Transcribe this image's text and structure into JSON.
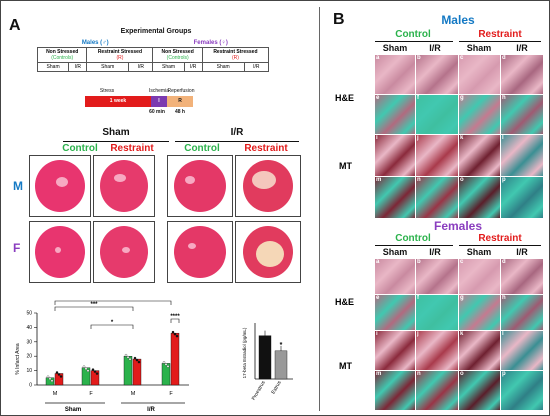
{
  "panelA": {
    "label": "A",
    "title": "Experimental Groups",
    "males": "Males (♂)",
    "females": "Females (♀)",
    "groups": [
      "Non Stressed",
      "Restraint Stressed",
      "Non Stressed",
      "Restraint Stressed"
    ],
    "group_sub": [
      "(Controls)",
      "(R)",
      "(Controls)",
      "(R)"
    ],
    "cells": [
      "Sham",
      "I/R",
      "Sham",
      "I/R",
      "Sham",
      "I/R",
      "Sham",
      "I/R"
    ],
    "timeline": {
      "stress": "Stress",
      "ischemia": "Ischemia",
      "reperfusion": "Reperfusion",
      "week": "1 week",
      "i": "I",
      "r": "R",
      "min": "60 min",
      "h": "48 h"
    },
    "sham": "Sham",
    "ir": "I/R",
    "control": "Control",
    "restraint": "Restraint",
    "M": "M",
    "F": "F",
    "colors": {
      "red": "#e21b1b",
      "purple": "#7b3ab0",
      "orange": "#f2b27a",
      "green": "#2bb24c",
      "blue": "#1479c4"
    }
  },
  "panelB": {
    "label": "B",
    "males": "Males",
    "females": "Females",
    "control": "Control",
    "restraint": "Restraint",
    "sham": "Sham",
    "ir": "I/R",
    "he": "H&E",
    "mt": "MT",
    "tile_letters": [
      "a",
      "b",
      "c",
      "d",
      "e",
      "f",
      "g",
      "h",
      "i",
      "j",
      "k",
      "l",
      "m",
      "n",
      "o",
      "p"
    ]
  },
  "chart_data": [
    {
      "type": "bar",
      "ylabel": "% Infarct Area",
      "ylim": [
        0,
        50
      ],
      "yticks": [
        "0",
        "10",
        "20",
        "30",
        "40",
        "50"
      ],
      "categories": [
        "M",
        "F",
        "M",
        "F"
      ],
      "group_labels": [
        "Sham",
        "I/R"
      ],
      "series": [
        {
          "values": [
            5,
            12,
            20,
            15
          ],
          "color": "#2bb24c"
        },
        {
          "values": [
            8,
            10,
            18,
            36
          ],
          "color": "#e21b1b"
        }
      ],
      "significance": [
        "***",
        "*",
        "****",
        "****"
      ]
    },
    {
      "type": "bar",
      "ylabel": "17-beta Estradiol (pg/mL)",
      "categories": [
        "Proestrus",
        "Estrus"
      ],
      "values": [
        100,
        65
      ],
      "colors": [
        "#111111",
        "#999999"
      ],
      "annotation": "*"
    }
  ]
}
